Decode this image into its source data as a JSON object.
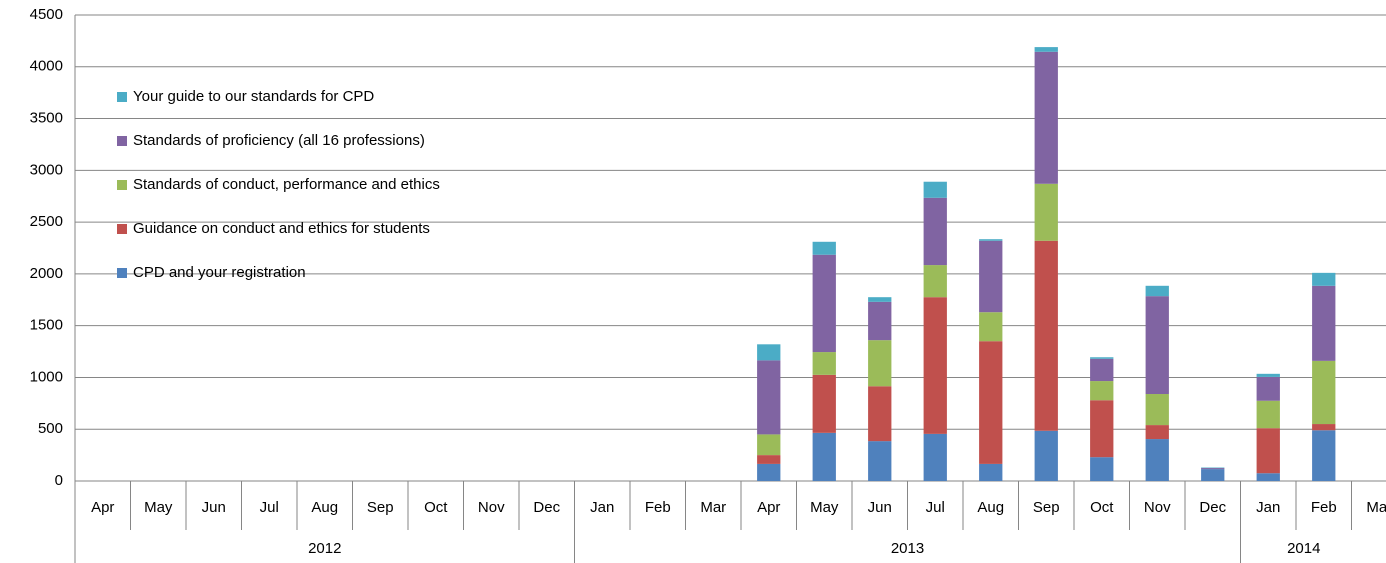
{
  "chart_data": {
    "type": "stacked_bar",
    "categories": [
      "Apr",
      "May",
      "Jun",
      "Jul",
      "Aug",
      "Sep",
      "Oct",
      "Nov",
      "Dec",
      "Jan",
      "Feb",
      "Mar",
      "Apr",
      "May",
      "Jun",
      "Jul",
      "Aug",
      "Sep",
      "Oct",
      "Nov",
      "Dec",
      "Jan",
      "Feb",
      "Mar"
    ],
    "year_groups": [
      {
        "label": "2012",
        "months": 9
      },
      {
        "label": "2013",
        "months": 12
      },
      {
        "label": "2014",
        "months": 3
      }
    ],
    "series": [
      {
        "name": "CPD and your registration",
        "color": "#4f81bd",
        "values": [
          null,
          null,
          null,
          null,
          null,
          null,
          null,
          null,
          null,
          null,
          null,
          null,
          165,
          465,
          385,
          455,
          165,
          485,
          230,
          405,
          115,
          75,
          490,
          null
        ]
      },
      {
        "name": "Guidance on conduct and ethics for students",
        "color": "#c0504d",
        "values": [
          null,
          null,
          null,
          null,
          null,
          null,
          null,
          null,
          null,
          null,
          null,
          null,
          85,
          560,
          530,
          1320,
          1185,
          1835,
          550,
          135,
          0,
          435,
          60,
          null
        ]
      },
      {
        "name": "Standards of conduct, performance and ethics",
        "color": "#9bbb59",
        "values": [
          null,
          null,
          null,
          null,
          null,
          null,
          null,
          null,
          null,
          null,
          null,
          null,
          200,
          220,
          445,
          310,
          280,
          550,
          185,
          300,
          0,
          265,
          610,
          null
        ]
      },
      {
        "name": "Standards of proficiency (all 16 professions)",
        "color": "#8064a2",
        "values": [
          null,
          null,
          null,
          null,
          null,
          null,
          null,
          null,
          null,
          null,
          null,
          null,
          715,
          940,
          370,
          650,
          690,
          1275,
          215,
          945,
          10,
          230,
          725,
          null
        ]
      },
      {
        "name": "Your guide to our standards for CPD",
        "color": "#4bacc6",
        "values": [
          null,
          null,
          null,
          null,
          null,
          null,
          null,
          null,
          null,
          null,
          null,
          null,
          155,
          125,
          45,
          155,
          15,
          45,
          15,
          100,
          5,
          30,
          125,
          null
        ]
      }
    ],
    "ylim": [
      0,
      4500
    ],
    "yticks": [
      0,
      500,
      1000,
      1500,
      2000,
      2500,
      3000,
      3500,
      4000,
      4500
    ],
    "grid": true,
    "legend": "top-left"
  }
}
